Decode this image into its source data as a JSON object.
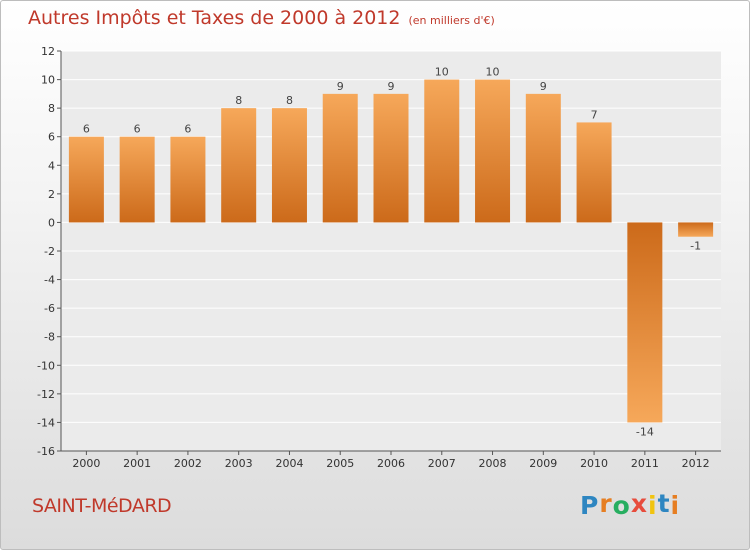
{
  "title": "Autres Impôts et Taxes de 2000 à 2012",
  "subtitle": "(en milliers d'€)",
  "commune": "SAINT-MéDARD",
  "logo": {
    "letters": [
      "P",
      "r",
      "o",
      "x",
      "i",
      "t",
      "i"
    ],
    "colors": [
      "#2e86c1",
      "#e67e22",
      "#27ae60",
      "#e74c3c",
      "#f1c40f",
      "#2e86c1",
      "#e67e22"
    ]
  },
  "colors": {
    "title": "#c0392b",
    "bar_light": "#f6a85a",
    "bar_dark": "#cc6a1a",
    "plot_bg": "#ebebeb",
    "grid": "#ffffff"
  },
  "chart_data": {
    "type": "bar",
    "title": "Autres Impôts et Taxes de 2000 à 2012",
    "subtitle": "(en milliers d'€)",
    "categories": [
      "2000",
      "2001",
      "2002",
      "2003",
      "2004",
      "2005",
      "2006",
      "2007",
      "2008",
      "2009",
      "2010",
      "2011",
      "2012"
    ],
    "values": [
      6,
      6,
      6,
      8,
      8,
      9,
      9,
      10,
      10,
      9,
      7,
      -14,
      -1
    ],
    "value_labels": [
      "6",
      "6",
      "6",
      "8",
      "8",
      "9",
      "9",
      "10",
      "10",
      "9",
      "7",
      "-14",
      "-1"
    ],
    "ylim": [
      -16,
      12
    ],
    "yticks": [
      12,
      10,
      8,
      6,
      4,
      2,
      0,
      -2,
      -4,
      -6,
      -8,
      -10,
      -12,
      -14,
      -16
    ],
    "ytick_labels": [
      "12",
      "10",
      "8",
      "6",
      "4",
      "2",
      "0",
      "-2",
      "-4",
      "-6",
      "-8",
      "-10",
      "-12",
      "-14",
      "-16"
    ],
    "grid": true,
    "legend": "none"
  }
}
